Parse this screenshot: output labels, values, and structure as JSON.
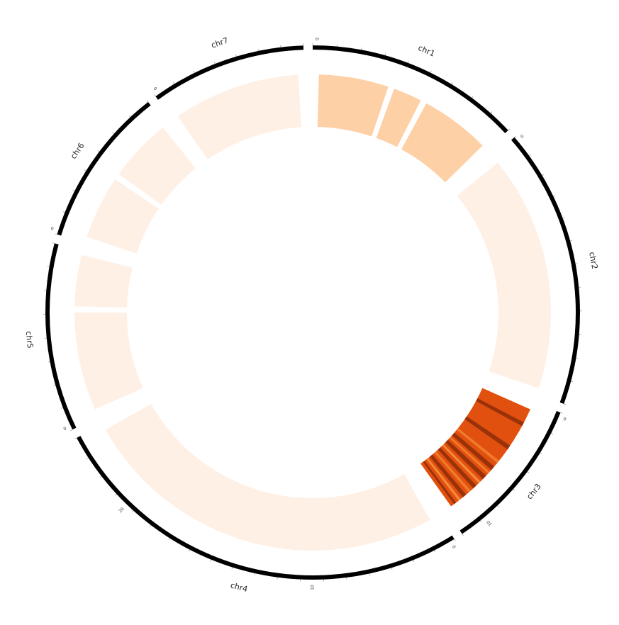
{
  "chart_data": {
    "type": "circos",
    "title": "",
    "chromosomes": [
      {
        "name": "chr1",
        "start_label": "0",
        "tick_labels": []
      },
      {
        "name": "chr2",
        "start_label": "0",
        "tick_labels": []
      },
      {
        "name": "chr3",
        "start_label": "0",
        "tick_labels": [
          "10"
        ]
      },
      {
        "name": "chr4",
        "start_label": "0",
        "tick_labels": [
          "10",
          "20"
        ]
      },
      {
        "name": "chr5",
        "start_label": "0",
        "tick_labels": []
      },
      {
        "name": "chr6",
        "start_label": "0",
        "tick_labels": []
      },
      {
        "name": "chr7",
        "start_label": "0",
        "tick_labels": []
      }
    ],
    "heatmap_track": {
      "color_scale": [
        "#fff0e6",
        "#fdd0a6",
        "#e2500f",
        "#8a2a08"
      ],
      "bins": [
        {
          "chr": "chr1",
          "value": 0.25
        },
        {
          "chr": "chr1",
          "value": 0.25
        },
        {
          "chr": "chr1",
          "value": 0.25
        },
        {
          "chr": "chr2",
          "value": 0.05
        },
        {
          "chr": "chr3",
          "value": 0.95
        },
        {
          "chr": "chr4",
          "value": 0.05
        },
        {
          "chr": "chr5",
          "value": 0.05
        },
        {
          "chr": "chr5",
          "value": 0.05
        },
        {
          "chr": "chr6",
          "value": 0.05
        },
        {
          "chr": "chr6",
          "value": 0.05
        },
        {
          "chr": "chr7",
          "value": 0.05
        }
      ]
    }
  }
}
